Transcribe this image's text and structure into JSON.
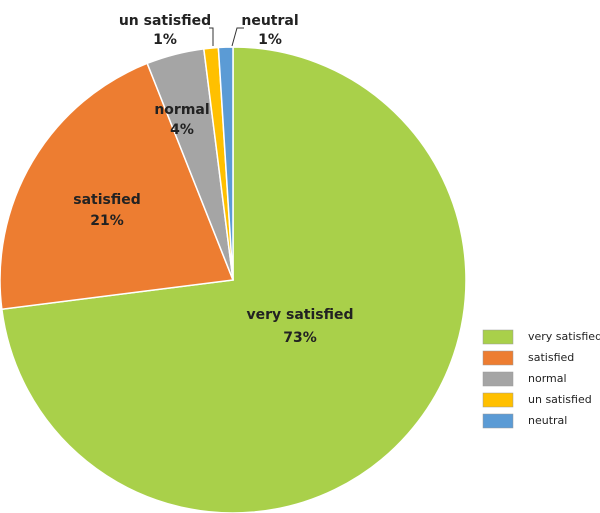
{
  "chart_data": {
    "type": "pie",
    "categories": [
      "very satisfied",
      "satisfied",
      "normal",
      "un satisfied",
      "neutral"
    ],
    "values": [
      73,
      21,
      4,
      1,
      1
    ],
    "value_labels": [
      "73%",
      "21%",
      "4%",
      "1%",
      "1%"
    ],
    "colors": [
      "#a9d04a",
      "#ed7d31",
      "#a5a5a5",
      "#ffc000",
      "#5b9bd5"
    ],
    "legend": "right"
  }
}
